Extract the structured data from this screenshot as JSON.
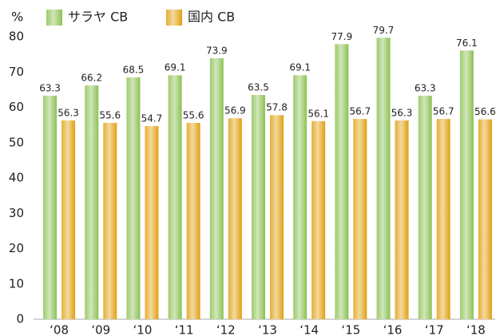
{
  "chart_data": {
    "type": "bar",
    "y_label": "%",
    "categories": [
      "‘08",
      "‘09",
      "‘10",
      "‘11",
      "‘12",
      "‘13",
      "‘14",
      "‘15",
      "‘16",
      "‘17",
      "‘18"
    ],
    "series": [
      {
        "name": "サラヤ CB",
        "color": "#8cc152",
        "values": [
          63.3,
          66.2,
          68.5,
          69.1,
          73.9,
          63.5,
          69.1,
          77.9,
          79.7,
          63.3,
          76.1
        ]
      },
      {
        "name": "国内 CB",
        "color": "#e0a010",
        "values": [
          56.3,
          55.6,
          54.7,
          55.6,
          56.9,
          57.8,
          56.1,
          56.7,
          56.3,
          56.7,
          56.6
        ]
      }
    ],
    "ylim": [
      0,
      80
    ],
    "yticks": [
      0,
      10,
      20,
      30,
      40,
      50,
      60,
      70,
      80
    ],
    "grid": false,
    "legend": "top"
  }
}
